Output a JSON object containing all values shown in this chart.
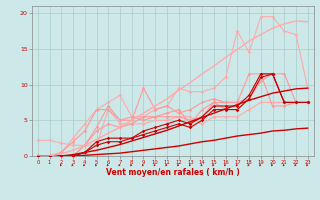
{
  "xlabel": "Vent moyen/en rafales ( km/h )",
  "bg_color": "#cce8e8",
  "grid_color": "#aacccc",
  "dark_red": "#cc0000",
  "light_pink": "#ffaaaa",
  "mid_pink": "#ff7777",
  "x": [
    0,
    1,
    2,
    3,
    4,
    5,
    6,
    7,
    8,
    9,
    10,
    11,
    12,
    13,
    14,
    15,
    16,
    17,
    18,
    19,
    20,
    21,
    22,
    23
  ],
  "straight_low": [
    0,
    0,
    0,
    0,
    0.1,
    0.2,
    0.3,
    0.4,
    0.6,
    0.8,
    1.0,
    1.2,
    1.4,
    1.7,
    2.0,
    2.2,
    2.5,
    2.8,
    3.0,
    3.2,
    3.5,
    3.6,
    3.8,
    3.9
  ],
  "straight_mid": [
    0,
    0,
    0,
    0.2,
    0.5,
    0.8,
    1.2,
    1.6,
    2.1,
    2.6,
    3.1,
    3.6,
    4.2,
    4.8,
    5.4,
    6.0,
    6.6,
    7.2,
    7.8,
    8.3,
    8.8,
    9.1,
    9.4,
    9.5
  ],
  "straight_high": [
    0,
    0,
    0.3,
    0.8,
    1.5,
    2.3,
    3.2,
    4.0,
    5.0,
    6.0,
    7.0,
    8.0,
    9.2,
    10.3,
    11.5,
    12.6,
    13.8,
    14.9,
    16.1,
    17.0,
    17.9,
    18.5,
    18.9,
    18.8
  ],
  "light1": [
    2.2,
    2.2,
    1.8,
    1.5,
    1.5,
    1.5,
    6.5,
    4.5,
    4.5,
    4.5,
    5.0,
    5.0,
    5.5,
    5.5,
    4.5,
    5.5,
    5.5,
    5.5,
    6.5,
    7.5,
    7.5,
    7.5,
    7.5,
    7.5
  ],
  "light2": [
    0,
    0,
    0.5,
    2.5,
    4.5,
    6.5,
    7.5,
    8.5,
    5.5,
    5.5,
    6.5,
    7.0,
    9.5,
    9.0,
    9.0,
    9.5,
    11.0,
    17.5,
    14.5,
    19.5,
    19.5,
    17.5,
    17.0,
    9.5
  ],
  "mid1": [
    0,
    0,
    0.5,
    2.0,
    3.5,
    6.5,
    6.5,
    5.0,
    5.0,
    9.5,
    6.5,
    7.0,
    6.0,
    6.5,
    7.5,
    8.0,
    7.5,
    7.5,
    11.5,
    11.5,
    11.5,
    11.5,
    7.5,
    7.5
  ],
  "mid2": [
    0,
    0,
    0,
    0,
    1.5,
    4.0,
    7.0,
    5.0,
    5.5,
    5.0,
    5.5,
    6.0,
    6.5,
    4.5,
    6.5,
    7.5,
    7.5,
    7.5,
    8.0,
    11.5,
    7.0,
    7.0,
    7.5,
    7.5
  ],
  "mid3": [
    0,
    0,
    0,
    0,
    1.5,
    3.5,
    4.5,
    4.0,
    4.5,
    5.5,
    5.5,
    5.5,
    5.5,
    5.0,
    5.5,
    7.5,
    6.5,
    6.5,
    8.0,
    10.5,
    11.5,
    7.5,
    7.5,
    7.5
  ],
  "dark1": [
    0,
    0,
    0,
    0,
    0.5,
    2.0,
    2.5,
    2.5,
    2.5,
    3.5,
    4.0,
    4.5,
    5.0,
    4.5,
    5.5,
    7.0,
    7.0,
    7.0,
    8.5,
    11.5,
    11.5,
    7.5,
    7.5,
    7.5
  ],
  "dark2": [
    0,
    0,
    0,
    0,
    0.5,
    1.5,
    2.0,
    2.0,
    2.5,
    3.0,
    3.5,
    4.0,
    4.5,
    4.0,
    5.0,
    6.5,
    6.5,
    6.5,
    8.0,
    11.0,
    11.5,
    7.5,
    7.5,
    7.5
  ],
  "ylim": [
    0,
    21
  ],
  "xlim": [
    0,
    23
  ],
  "yticks": [
    0,
    5,
    10,
    15,
    20
  ],
  "xticks": [
    0,
    1,
    2,
    3,
    4,
    5,
    6,
    7,
    8,
    9,
    10,
    11,
    12,
    13,
    14,
    15,
    16,
    17,
    18,
    19,
    20,
    21,
    22,
    23
  ]
}
